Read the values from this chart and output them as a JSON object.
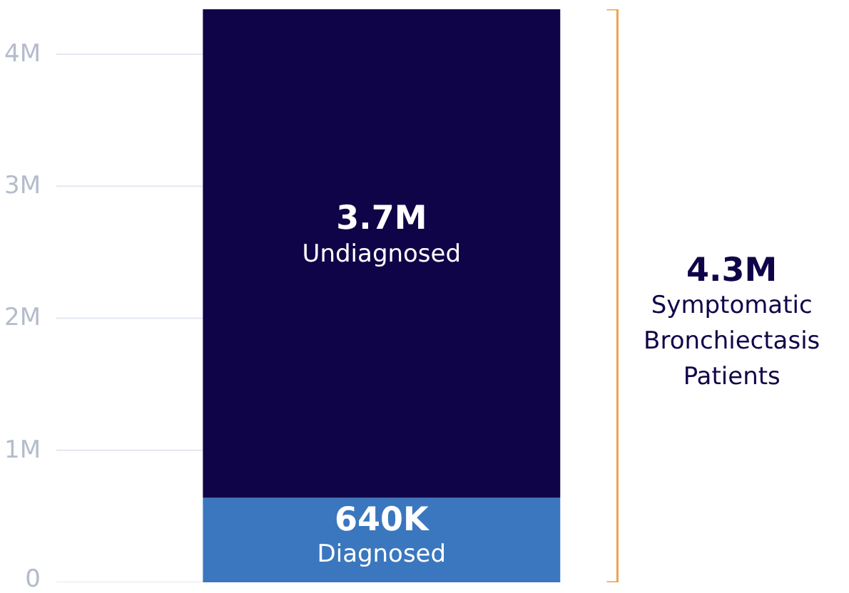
{
  "chart_data": {
    "type": "bar",
    "stacked": true,
    "categories": [
      null
    ],
    "series": [
      {
        "name": "Diagnosed",
        "color": "#3a77be",
        "values": [
          640000
        ],
        "value_labels": [
          "640K"
        ]
      },
      {
        "name": "Undiagnosed",
        "color": "#100448",
        "values": [
          3700000
        ],
        "value_labels": [
          "3.7M"
        ]
      }
    ],
    "annotations": [
      "4.3M",
      "Symptomatic\nBronchiectasis\nPatients"
    ],
    "ylim": [
      0,
      4340000
    ],
    "yticks": [
      0,
      {
        "value": 1000000,
        "label": "1M"
      },
      {
        "value": 2000000,
        "label": "2M"
      },
      {
        "value": 3000000,
        "label": "3M"
      },
      {
        "value": 4000000,
        "label": "4M"
      }
    ],
    "grid": "y"
  }
}
